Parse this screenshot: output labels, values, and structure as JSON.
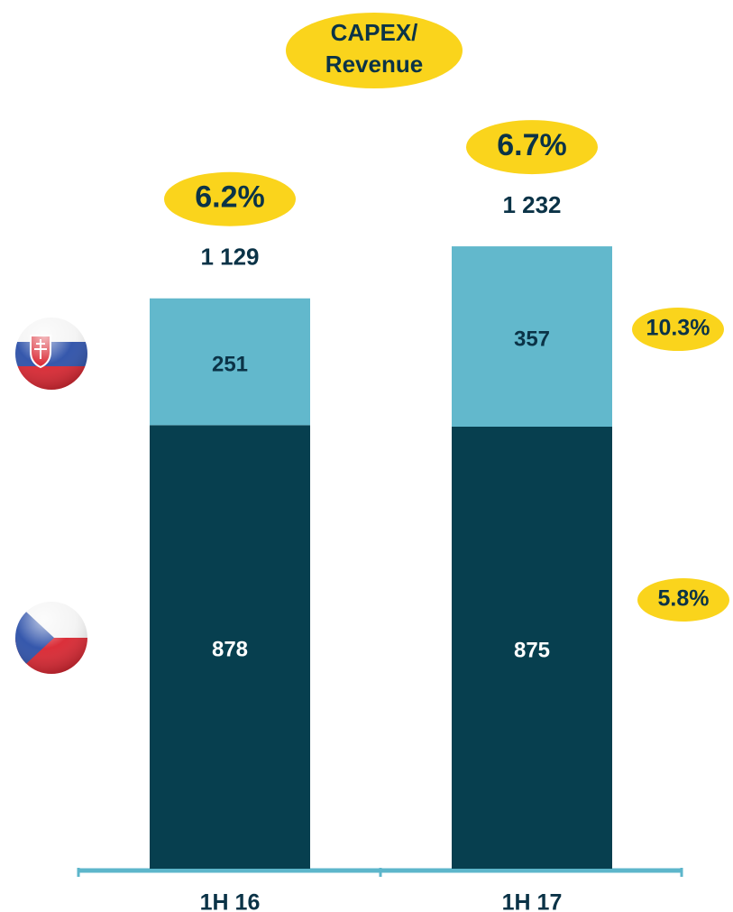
{
  "chart_data": {
    "type": "stacked_bar",
    "title": [
      "CAPEX/",
      "Revenue"
    ],
    "categories": [
      "1H 16",
      "1H 17"
    ],
    "series": [
      {
        "color": "#073f4f",
        "label_color": "#ffffff",
        "values": [
          878,
          875
        ],
        "ratio": 5.8,
        "ratio_label": "5.8%"
      },
      {
        "color": "#62b8cc",
        "label_color": "#0b3347",
        "values": [
          251,
          357
        ],
        "ratio": 10.3,
        "ratio_label": "10.3%"
      }
    ],
    "totals": {
      "values": [
        1129,
        1232
      ],
      "value_labels": [
        "1 129",
        "1 232"
      ]
    },
    "ratios": {
      "values": [
        6.2,
        6.7
      ],
      "value_labels": [
        "6.2%",
        "6.7%"
      ]
    }
  }
}
